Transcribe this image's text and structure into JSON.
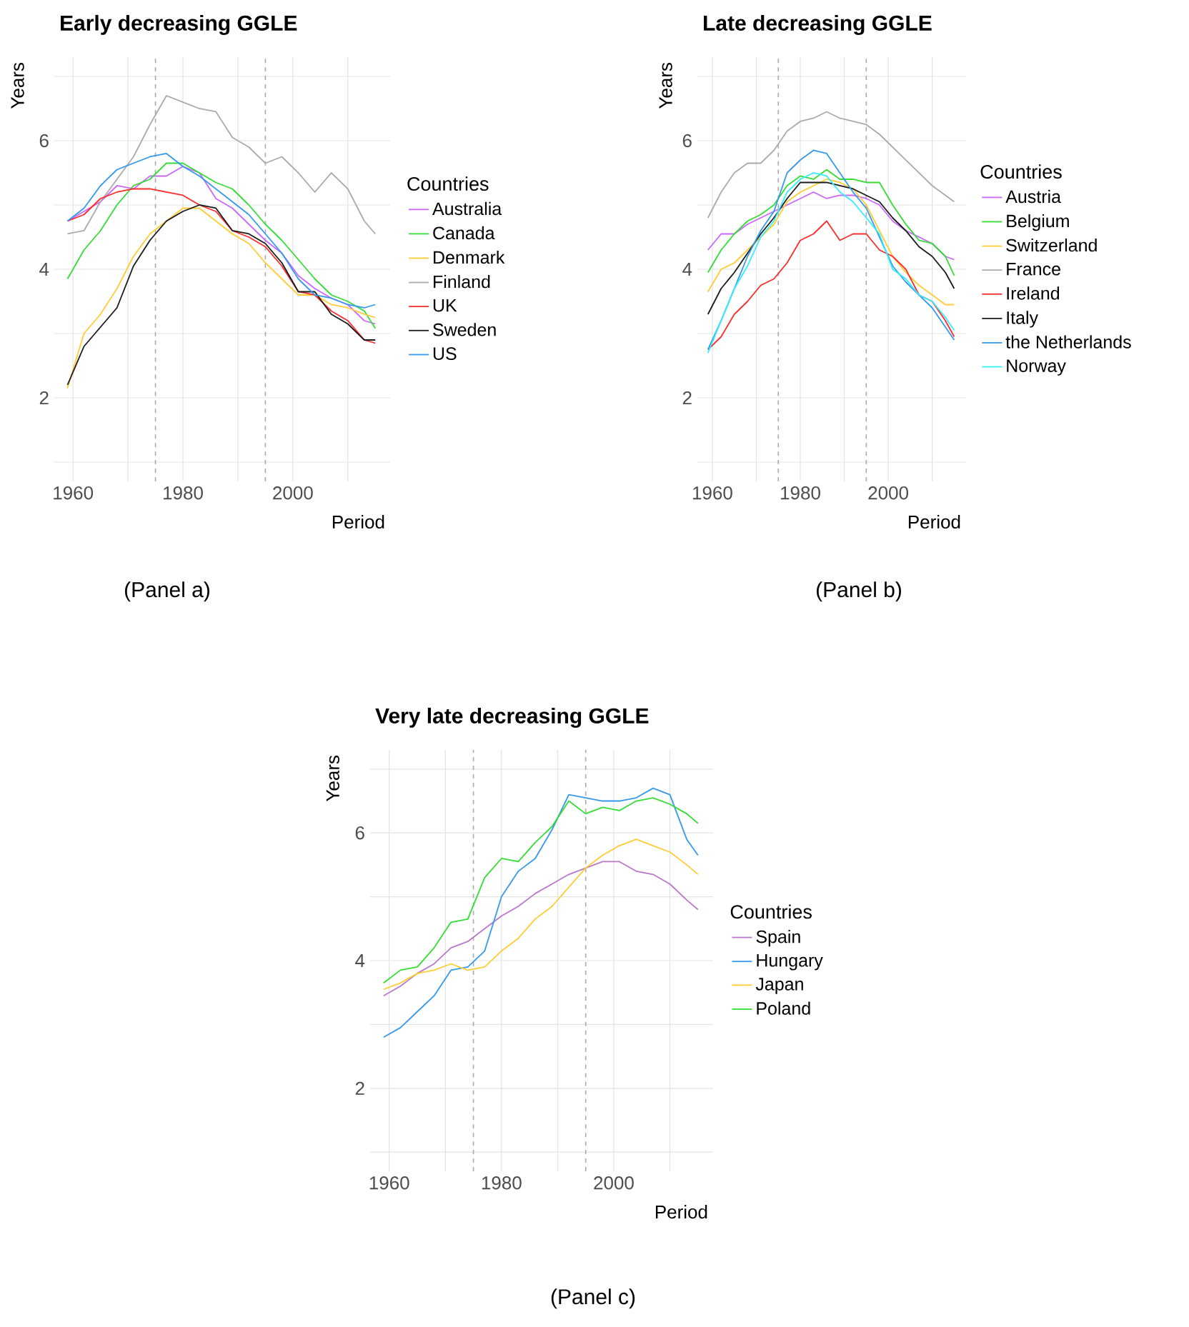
{
  "chart_data": [
    {
      "type": "line",
      "title": "Early decreasing GGLE",
      "xlabel": "Period",
      "ylabel": "Years",
      "legend_title": "Countries",
      "annotations": [
        "(Panel a)"
      ],
      "x": [
        1959,
        1962,
        1965,
        1968,
        1971,
        1974,
        1977,
        1980,
        1983,
        1986,
        1989,
        1992,
        1995,
        1998,
        2001,
        2004,
        2007,
        2010,
        2013,
        2015
      ],
      "series": [
        {
          "name": "Australia",
          "color": "#cc66ff",
          "values": [
            4.75,
            4.9,
            5.05,
            5.3,
            5.25,
            5.45,
            5.45,
            5.6,
            5.5,
            5.1,
            4.95,
            4.7,
            4.45,
            4.25,
            3.9,
            3.7,
            3.55,
            3.45,
            3.2,
            3.15
          ]
        },
        {
          "name": "Canada",
          "color": "#33dd33",
          "values": [
            3.85,
            4.3,
            4.6,
            5.0,
            5.3,
            5.4,
            5.65,
            5.65,
            5.5,
            5.35,
            5.25,
            5.0,
            4.7,
            4.45,
            4.15,
            3.85,
            3.6,
            3.5,
            3.35,
            3.08
          ]
        },
        {
          "name": "Denmark",
          "color": "#ffcc33",
          "values": [
            2.15,
            3.0,
            3.3,
            3.7,
            4.2,
            4.55,
            4.75,
            4.95,
            4.95,
            4.75,
            4.55,
            4.4,
            4.1,
            3.85,
            3.6,
            3.6,
            3.45,
            3.4,
            3.3,
            3.25
          ]
        },
        {
          "name": "Finland",
          "color": "#aaaaaa",
          "values": [
            4.55,
            4.6,
            5.05,
            5.4,
            5.75,
            6.25,
            6.7,
            6.6,
            6.5,
            6.45,
            6.05,
            5.9,
            5.65,
            5.75,
            5.5,
            5.2,
            5.5,
            5.25,
            4.75,
            4.55
          ]
        },
        {
          "name": "UK",
          "color": "#ff2a2a",
          "values": [
            4.75,
            4.85,
            5.1,
            5.2,
            5.25,
            5.25,
            5.2,
            5.15,
            5.0,
            4.9,
            4.6,
            4.5,
            4.35,
            4.05,
            3.65,
            3.6,
            3.35,
            3.2,
            2.9,
            2.85
          ]
        },
        {
          "name": "Sweden",
          "color": "#1a1a1a",
          "values": [
            2.2,
            2.8,
            3.1,
            3.4,
            4.05,
            4.45,
            4.75,
            4.9,
            5.0,
            4.95,
            4.6,
            4.55,
            4.4,
            4.1,
            3.65,
            3.65,
            3.3,
            3.15,
            2.9,
            2.9
          ]
        },
        {
          "name": "US",
          "color": "#3399ee",
          "values": [
            4.75,
            4.95,
            5.3,
            5.55,
            5.65,
            5.75,
            5.8,
            5.6,
            5.45,
            5.25,
            5.05,
            4.85,
            4.55,
            4.25,
            3.85,
            3.6,
            3.55,
            3.45,
            3.4,
            3.45
          ]
        }
      ],
      "xlim": [
        1956.6,
        2017.7
      ],
      "ylim": [
        0.7,
        7.3
      ],
      "xticks": [
        1960,
        {
          "value": 1970,
          "label": null
        },
        1980,
        {
          "value": 1990,
          "label": null
        },
        2000,
        {
          "value": 2010,
          "label": null
        }
      ],
      "yticks": [
        {
          "value": 1,
          "label": null
        },
        2,
        {
          "value": 3,
          "label": null
        },
        4,
        {
          "value": 5,
          "label": null
        },
        6,
        {
          "value": 7,
          "label": null
        }
      ],
      "ref_lines": [
        {
          "axis": "x",
          "value": 1975,
          "color": "#aaaaaa",
          "line_style": "dashed"
        },
        {
          "axis": "x",
          "value": 1995,
          "color": "#aaaaaa",
          "line_style": "dashed"
        }
      ],
      "grid": true,
      "legend": "right"
    },
    {
      "type": "line",
      "title": "Late decreasing GGLE",
      "xlabel": "Period",
      "ylabel": "Years",
      "legend_title": "Countries",
      "annotations": [
        "(Panel b)"
      ],
      "x": [
        1959,
        1962,
        1965,
        1968,
        1971,
        1974,
        1977,
        1980,
        1983,
        1986,
        1989,
        1992,
        1995,
        1998,
        2001,
        2004,
        2007,
        2010,
        2013,
        2015
      ],
      "series": [
        {
          "name": "Austria",
          "color": "#cc66ff",
          "values": [
            4.3,
            4.55,
            4.55,
            4.7,
            4.8,
            4.9,
            5.0,
            5.1,
            5.2,
            5.1,
            5.15,
            5.15,
            5.1,
            5.0,
            4.75,
            4.6,
            4.5,
            4.4,
            4.2,
            4.15
          ]
        },
        {
          "name": "Belgium",
          "color": "#33dd33",
          "values": [
            3.95,
            4.3,
            4.55,
            4.75,
            4.85,
            5.0,
            5.3,
            5.45,
            5.4,
            5.55,
            5.4,
            5.4,
            5.35,
            5.35,
            5.0,
            4.7,
            4.45,
            4.4,
            4.2,
            3.9
          ]
        },
        {
          "name": "Switzerland",
          "color": "#ffcc33",
          "values": [
            3.65,
            4.0,
            4.1,
            4.3,
            4.5,
            4.7,
            5.05,
            5.2,
            5.3,
            5.4,
            5.35,
            5.25,
            5.0,
            4.6,
            4.2,
            3.95,
            3.75,
            3.6,
            3.45,
            3.45
          ]
        },
        {
          "name": "France",
          "color": "#aaaaaa",
          "values": [
            4.8,
            5.2,
            5.5,
            5.65,
            5.65,
            5.85,
            6.15,
            6.3,
            6.35,
            6.45,
            6.35,
            6.3,
            6.25,
            6.1,
            5.9,
            5.7,
            5.5,
            5.3,
            5.15,
            5.05
          ]
        },
        {
          "name": "Ireland",
          "color": "#ff2a2a",
          "values": [
            2.75,
            2.95,
            3.3,
            3.5,
            3.75,
            3.85,
            4.1,
            4.45,
            4.55,
            4.75,
            4.45,
            4.55,
            4.55,
            4.3,
            4.2,
            4.0,
            3.6,
            3.5,
            3.2,
            2.95
          ]
        },
        {
          "name": "Italy",
          "color": "#1a1a1a",
          "values": [
            3.3,
            3.7,
            3.95,
            4.25,
            4.55,
            4.8,
            5.1,
            5.35,
            5.35,
            5.35,
            5.3,
            5.25,
            5.15,
            5.05,
            4.8,
            4.6,
            4.35,
            4.2,
            3.95,
            3.7
          ]
        },
        {
          "name": "the Netherlands",
          "color": "#3399ee",
          "values": [
            2.75,
            3.2,
            3.7,
            4.2,
            4.6,
            4.9,
            5.5,
            5.7,
            5.85,
            5.8,
            5.5,
            5.2,
            4.95,
            4.5,
            4.05,
            3.8,
            3.6,
            3.4,
            3.1,
            2.9
          ]
        },
        {
          "name": "Norway",
          "color": "#33eeff",
          "values": [
            2.7,
            3.2,
            3.7,
            4.05,
            4.5,
            4.75,
            5.2,
            5.4,
            5.5,
            5.45,
            5.2,
            5.05,
            4.8,
            4.55,
            4.0,
            3.85,
            3.6,
            3.5,
            3.25,
            3.05
          ]
        }
      ],
      "xlim": [
        1956.6,
        2017.7
      ],
      "ylim": [
        0.7,
        7.3
      ],
      "xticks": [
        1960,
        {
          "value": 1970,
          "label": null
        },
        1980,
        {
          "value": 1990,
          "label": null
        },
        2000,
        {
          "value": 2010,
          "label": null
        }
      ],
      "yticks": [
        {
          "value": 1,
          "label": null
        },
        2,
        {
          "value": 3,
          "label": null
        },
        4,
        {
          "value": 5,
          "label": null
        },
        6,
        {
          "value": 7,
          "label": null
        }
      ],
      "ref_lines": [
        {
          "axis": "x",
          "value": 1975,
          "color": "#aaaaaa",
          "line_style": "dashed"
        },
        {
          "axis": "x",
          "value": 1995,
          "color": "#aaaaaa",
          "line_style": "dashed"
        }
      ],
      "grid": true,
      "legend": "right"
    },
    {
      "type": "line",
      "title": "Very late decreasing GGLE",
      "xlabel": "Period",
      "ylabel": "Years",
      "legend_title": "Countries",
      "annotations": [
        "(Panel c)"
      ],
      "x": [
        1959,
        1962,
        1965,
        1968,
        1971,
        1974,
        1977,
        1980,
        1983,
        1986,
        1989,
        1992,
        1995,
        1998,
        2001,
        2004,
        2007,
        2010,
        2013,
        2015
      ],
      "series": [
        {
          "name": "Spain",
          "color": "#bb77cc",
          "values": [
            3.45,
            3.6,
            3.8,
            3.95,
            4.2,
            4.3,
            4.5,
            4.7,
            4.85,
            5.05,
            5.2,
            5.35,
            5.45,
            5.55,
            5.55,
            5.4,
            5.35,
            5.2,
            4.95,
            4.8
          ]
        },
        {
          "name": "Hungary",
          "color": "#3399ee",
          "values": [
            2.8,
            2.95,
            3.2,
            3.45,
            3.85,
            3.9,
            4.15,
            5.0,
            5.4,
            5.6,
            6.05,
            6.6,
            6.55,
            6.5,
            6.5,
            6.55,
            6.7,
            6.6,
            5.9,
            5.65
          ]
        },
        {
          "name": "Japan",
          "color": "#ffcc33",
          "values": [
            3.55,
            3.65,
            3.8,
            3.85,
            3.95,
            3.85,
            3.9,
            4.15,
            4.35,
            4.65,
            4.85,
            5.15,
            5.45,
            5.65,
            5.8,
            5.9,
            5.8,
            5.7,
            5.5,
            5.35
          ]
        },
        {
          "name": "Poland",
          "color": "#33dd33",
          "values": [
            3.65,
            3.85,
            3.9,
            4.2,
            4.6,
            4.65,
            5.3,
            5.6,
            5.55,
            5.85,
            6.1,
            6.5,
            6.3,
            6.4,
            6.35,
            6.5,
            6.55,
            6.45,
            6.3,
            6.15
          ]
        }
      ],
      "xlim": [
        1956.6,
        2017.7
      ],
      "ylim": [
        0.7,
        7.3
      ],
      "xticks": [
        1960,
        {
          "value": 1970,
          "label": null
        },
        1980,
        {
          "value": 1990,
          "label": null
        },
        2000,
        {
          "value": 2010,
          "label": null
        }
      ],
      "yticks": [
        {
          "value": 1,
          "label": null
        },
        2,
        {
          "value": 3,
          "label": null
        },
        4,
        {
          "value": 5,
          "label": null
        },
        6,
        {
          "value": 7,
          "label": null
        }
      ],
      "ref_lines": [
        {
          "axis": "x",
          "value": 1975,
          "color": "#aaaaaa",
          "line_style": "dashed"
        },
        {
          "axis": "x",
          "value": 1995,
          "color": "#aaaaaa",
          "line_style": "dashed"
        }
      ],
      "grid": true,
      "legend": "right"
    }
  ]
}
